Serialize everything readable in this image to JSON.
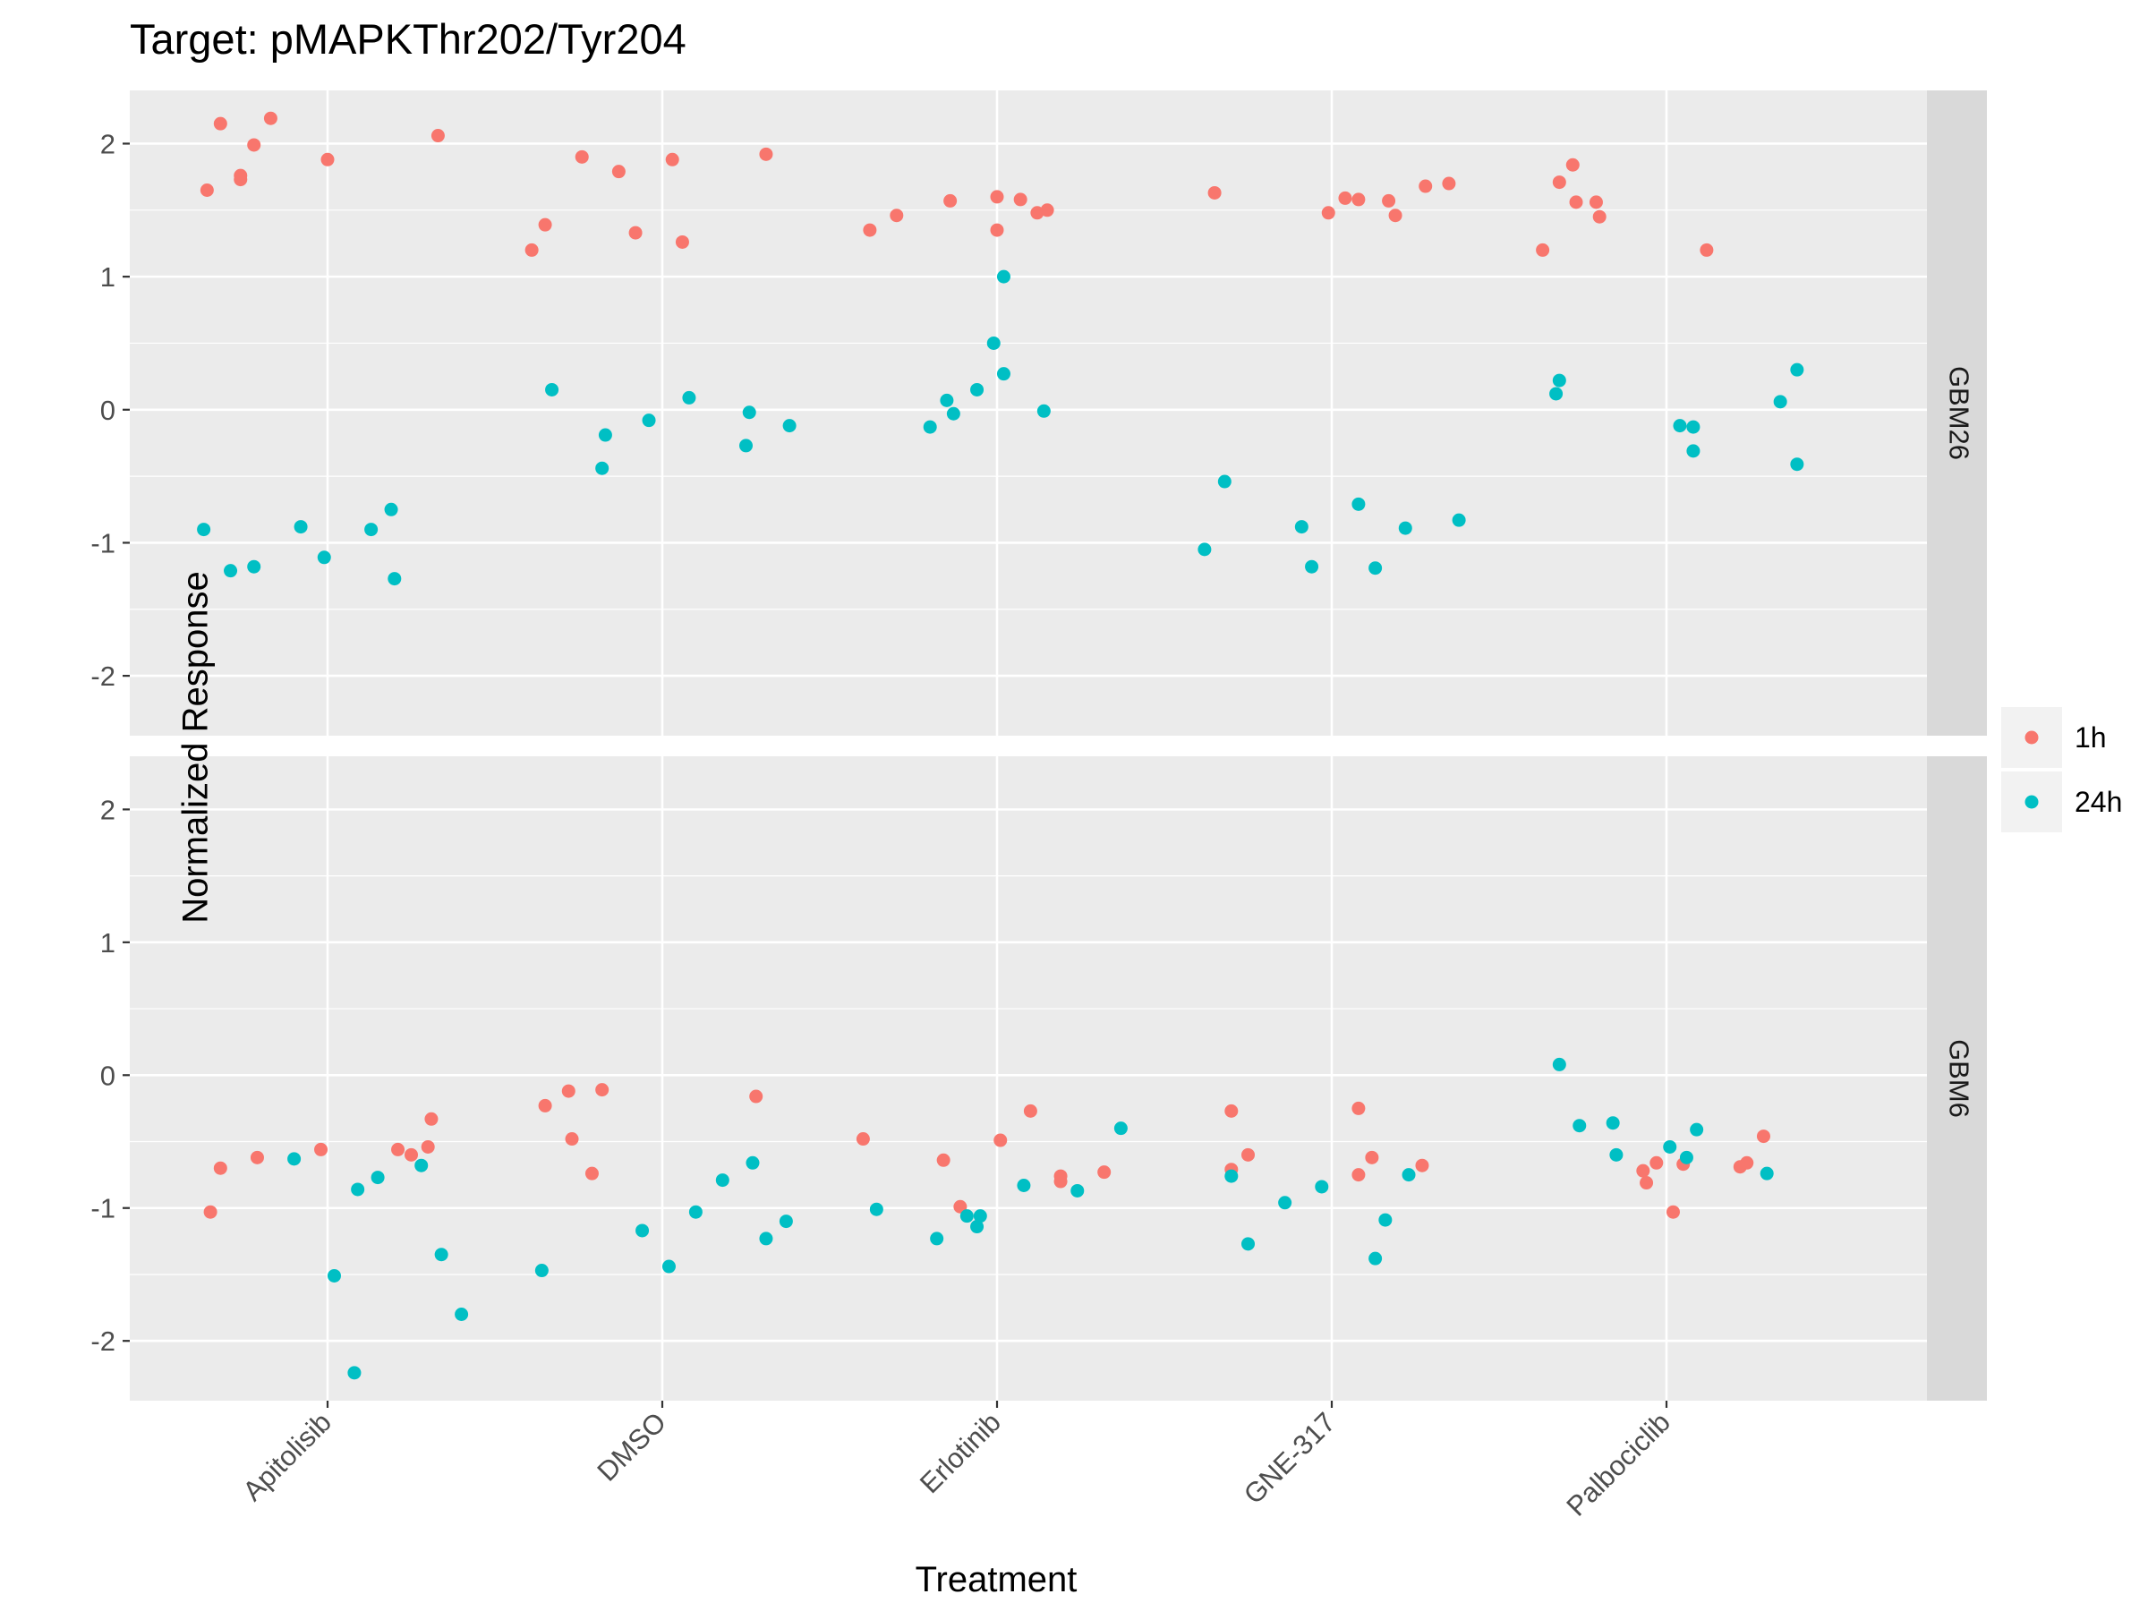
{
  "chart_data": {
    "type": "scatter",
    "title": "Target: pMAPKThr202/Tyr204",
    "xlabel": "Treatment",
    "ylabel": "Normalized Response",
    "categories": [
      "Apitolisib",
      "DMSO",
      "Erlotinib",
      "GNE-317",
      "Palbociclib"
    ],
    "ylim": [
      -2.45,
      2.4
    ],
    "yticks": [
      -2,
      -1,
      0,
      1,
      2
    ],
    "ytick_labels": [
      "-2",
      "-1",
      "0",
      "1",
      "2"
    ],
    "grid": true,
    "legend_position": "right",
    "legend": [
      {
        "name": "1h",
        "color": "#F8766D"
      },
      {
        "name": "24h",
        "color": "#00BFC4"
      }
    ],
    "facets": [
      {
        "label": "GBM26",
        "series": [
          {
            "name": "1h",
            "points": [
              [
                -0.36,
                1.65
              ],
              [
                -0.32,
                2.15
              ],
              [
                -0.26,
                1.73
              ],
              [
                -0.26,
                1.76
              ],
              [
                -0.22,
                1.99
              ],
              [
                -0.17,
                2.19
              ],
              [
                0.0,
                1.88
              ],
              [
                0.33,
                2.06
              ],
              [
                -0.39,
                1.2
              ],
              [
                -0.35,
                1.39
              ],
              [
                -0.24,
                1.9
              ],
              [
                -0.13,
                1.79
              ],
              [
                -0.08,
                1.33
              ],
              [
                0.03,
                1.88
              ],
              [
                0.06,
                1.26
              ],
              [
                0.31,
                1.92
              ],
              [
                -0.38,
                1.35
              ],
              [
                -0.3,
                1.46
              ],
              [
                -0.14,
                1.57
              ],
              [
                0.0,
                1.35
              ],
              [
                0.0,
                1.6
              ],
              [
                0.07,
                1.58
              ],
              [
                0.12,
                1.48
              ],
              [
                0.15,
                1.5
              ],
              [
                -0.35,
                1.63
              ],
              [
                -0.01,
                1.48
              ],
              [
                0.04,
                1.59
              ],
              [
                0.08,
                1.58
              ],
              [
                0.17,
                1.57
              ],
              [
                0.19,
                1.46
              ],
              [
                0.28,
                1.68
              ],
              [
                0.35,
                1.7
              ],
              [
                -0.37,
                1.2
              ],
              [
                -0.32,
                1.71
              ],
              [
                -0.28,
                1.84
              ],
              [
                -0.27,
                1.56
              ],
              [
                -0.21,
                1.56
              ],
              [
                -0.2,
                1.45
              ],
              [
                0.12,
                1.2
              ]
            ]
          },
          {
            "name": "24h",
            "points": [
              [
                -0.37,
                -0.9
              ],
              [
                -0.29,
                -1.21
              ],
              [
                -0.22,
                -1.18
              ],
              [
                -0.08,
                -0.88
              ],
              [
                -0.01,
                -1.11
              ],
              [
                0.13,
                -0.9
              ],
              [
                0.19,
                -0.75
              ],
              [
                0.2,
                -1.27
              ],
              [
                -0.33,
                0.15
              ],
              [
                -0.18,
                -0.44
              ],
              [
                -0.17,
                -0.19
              ],
              [
                -0.04,
                -0.08
              ],
              [
                0.08,
                0.09
              ],
              [
                0.25,
                -0.27
              ],
              [
                0.26,
                -0.02
              ],
              [
                0.38,
                -0.12
              ],
              [
                -0.2,
                -0.13
              ],
              [
                -0.15,
                0.07
              ],
              [
                -0.13,
                -0.03
              ],
              [
                -0.06,
                0.15
              ],
              [
                -0.01,
                0.5
              ],
              [
                0.02,
                0.27
              ],
              [
                0.02,
                1.0
              ],
              [
                0.14,
                -0.01
              ],
              [
                -0.38,
                -1.05
              ],
              [
                -0.32,
                -0.54
              ],
              [
                -0.09,
                -0.88
              ],
              [
                -0.06,
                -1.18
              ],
              [
                0.08,
                -0.71
              ],
              [
                0.13,
                -1.19
              ],
              [
                0.22,
                -0.89
              ],
              [
                0.38,
                -0.83
              ],
              [
                -0.33,
                0.12
              ],
              [
                -0.32,
                0.22
              ],
              [
                0.04,
                -0.12
              ],
              [
                0.08,
                -0.13
              ],
              [
                0.08,
                -0.31
              ],
              [
                0.34,
                0.06
              ],
              [
                0.39,
                0.3
              ],
              [
                0.39,
                -0.41
              ]
            ]
          }
        ]
      },
      {
        "label": "GBM6",
        "series": [
          {
            "name": "1h",
            "points": [
              [
                -0.35,
                -1.03
              ],
              [
                -0.32,
                -0.7
              ],
              [
                -0.21,
                -0.62
              ],
              [
                -0.02,
                -0.56
              ],
              [
                0.21,
                -0.56
              ],
              [
                0.25,
                -0.6
              ],
              [
                0.3,
                -0.54
              ],
              [
                0.31,
                -0.33
              ],
              [
                -0.35,
                -0.23
              ],
              [
                -0.28,
                -0.12
              ],
              [
                -0.27,
                -0.48
              ],
              [
                -0.21,
                -0.74
              ],
              [
                -0.18,
                -0.11
              ],
              [
                0.28,
                -0.16
              ],
              [
                -0.4,
                -0.48
              ],
              [
                -0.16,
                -0.64
              ],
              [
                -0.11,
                -0.99
              ],
              [
                0.01,
                -0.49
              ],
              [
                0.1,
                -0.27
              ],
              [
                0.19,
                -0.76
              ],
              [
                0.19,
                -0.8
              ],
              [
                0.32,
                -0.73
              ],
              [
                -0.3,
                -0.27
              ],
              [
                -0.3,
                -0.71
              ],
              [
                -0.25,
                -0.6
              ],
              [
                0.08,
                -0.25
              ],
              [
                0.08,
                -0.75
              ],
              [
                0.12,
                -0.62
              ],
              [
                0.27,
                -0.68
              ],
              [
                -0.07,
                -0.72
              ],
              [
                -0.06,
                -0.81
              ],
              [
                -0.03,
                -0.66
              ],
              [
                0.02,
                -1.03
              ],
              [
                0.05,
                -0.67
              ],
              [
                0.22,
                -0.69
              ],
              [
                0.24,
                -0.66
              ],
              [
                0.29,
                -0.46
              ]
            ]
          },
          {
            "name": "24h",
            "points": [
              [
                -0.1,
                -0.63
              ],
              [
                0.02,
                -1.51
              ],
              [
                0.08,
                -2.24
              ],
              [
                0.09,
                -0.86
              ],
              [
                0.15,
                -0.77
              ],
              [
                0.28,
                -0.68
              ],
              [
                0.34,
                -1.35
              ],
              [
                0.4,
                -1.8
              ],
              [
                -0.36,
                -1.47
              ],
              [
                -0.06,
                -1.17
              ],
              [
                0.02,
                -1.44
              ],
              [
                0.1,
                -1.03
              ],
              [
                0.18,
                -0.79
              ],
              [
                0.27,
                -0.66
              ],
              [
                0.31,
                -1.23
              ],
              [
                0.37,
                -1.1
              ],
              [
                -0.36,
                -1.01
              ],
              [
                -0.18,
                -1.23
              ],
              [
                -0.09,
                -1.06
              ],
              [
                -0.06,
                -1.14
              ],
              [
                -0.05,
                -1.06
              ],
              [
                0.08,
                -0.83
              ],
              [
                0.24,
                -0.87
              ],
              [
                0.37,
                -0.4
              ],
              [
                -0.3,
                -0.76
              ],
              [
                -0.25,
                -1.27
              ],
              [
                -0.14,
                -0.96
              ],
              [
                -0.03,
                -0.84
              ],
              [
                0.13,
                -1.38
              ],
              [
                0.16,
                -1.09
              ],
              [
                0.23,
                -0.75
              ],
              [
                -0.32,
                0.08
              ],
              [
                -0.26,
                -0.38
              ],
              [
                -0.16,
                -0.36
              ],
              [
                -0.15,
                -0.6
              ],
              [
                0.01,
                -0.54
              ],
              [
                0.06,
                -0.62
              ],
              [
                0.09,
                -0.41
              ],
              [
                0.3,
                -0.74
              ]
            ]
          }
        ]
      }
    ]
  }
}
